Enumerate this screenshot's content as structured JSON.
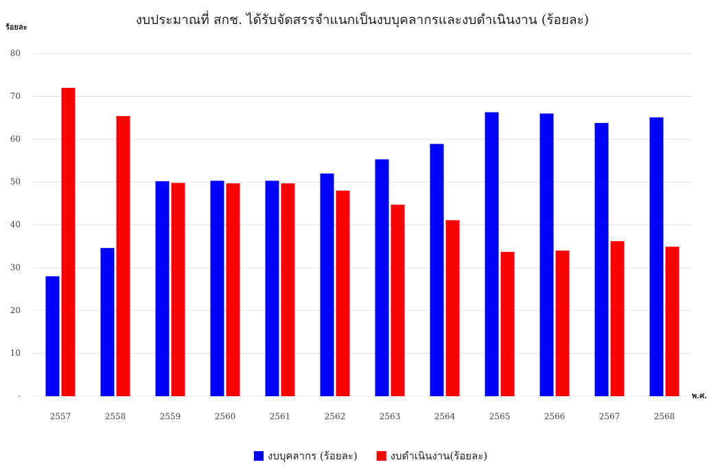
{
  "chart_data": {
    "type": "bar",
    "title": "งบประมาณที่ สกช. ได้รับจัดสรรจำแนกเป็นงบบุคลากรและงบดำเนินงาน (ร้อยละ)",
    "y_label": "ร้อยละ",
    "x_label": "พ.ศ.",
    "categories": [
      "2557",
      "2558",
      "2559",
      "2560",
      "2561",
      "2562",
      "2563",
      "2564",
      "2565",
      "2566",
      "2567",
      "2568"
    ],
    "series": [
      {
        "name": "งบบุคลากร (ร้อยละ)",
        "color": "#0000ff",
        "values": [
          28,
          34.6,
          50.2,
          50.3,
          50.3,
          52,
          55.3,
          58.9,
          66.3,
          66,
          63.8,
          65.1
        ]
      },
      {
        "name": "งบดำเนินงาน(ร้อยละ)",
        "color": "#ff0000",
        "values": [
          72,
          65.4,
          49.8,
          49.7,
          49.7,
          48,
          44.7,
          41.1,
          33.7,
          34,
          36.2,
          34.9
        ]
      }
    ],
    "ylim": [
      0,
      80
    ],
    "yticks": [
      {
        "value": 0,
        "label": "-"
      },
      10,
      20,
      30,
      40,
      50,
      60,
      70,
      80
    ],
    "grid": true,
    "legend": "bottom"
  }
}
